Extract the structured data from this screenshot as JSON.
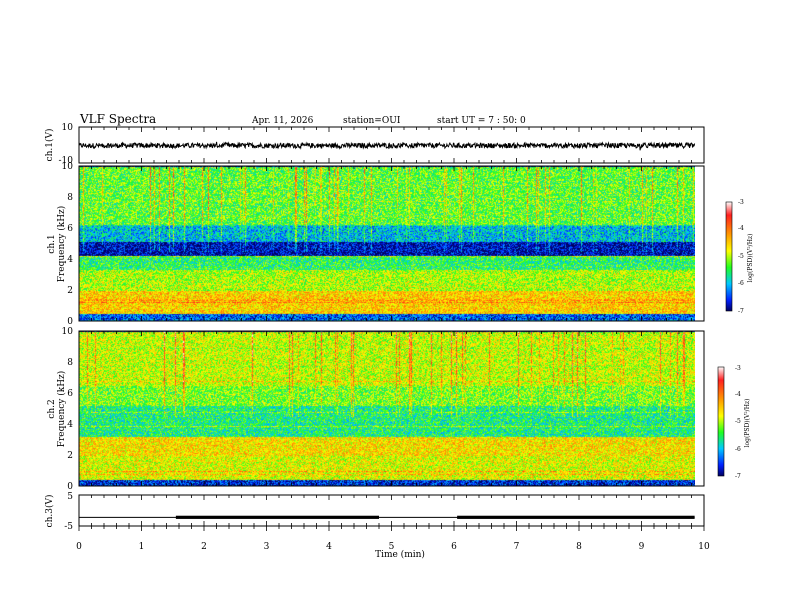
{
  "header": {
    "title": "VLF Spectra",
    "date": "Apr. 11, 2026",
    "station": "station=OUI",
    "start": "start  UT =   7 : 50: 0"
  },
  "chart_data": [
    {
      "type": "line",
      "name": "waveform",
      "ylabel": "ch.1(V)",
      "ylim": [
        -10,
        10
      ],
      "yticks": [
        "10",
        "-10"
      ],
      "xlim": [
        0,
        10
      ],
      "baseline": -0.3,
      "noise_amplitude": 1.4
    },
    {
      "type": "heatmap",
      "name": "ch1-spectrogram",
      "ylabel": "ch.1\nFrequency (kHz)",
      "ylim": [
        0,
        10
      ],
      "yticks": [
        "0",
        "2",
        "4",
        "6",
        "8",
        "10"
      ],
      "xlim": [
        0,
        9.85
      ],
      "colorbar": {
        "label": "log(PSD)(V²/Hz)",
        "ticks": [
          "-3",
          "-4",
          "-5",
          "-6",
          "-7"
        ],
        "range": [
          -7,
          -3
        ]
      },
      "bands": [
        {
          "f0": 0,
          "f1": 0.5,
          "psd": -6.4
        },
        {
          "f0": 0.5,
          "f1": 2.0,
          "psd": -4.5
        },
        {
          "f0": 2.0,
          "f1": 3.3,
          "psd": -5.0
        },
        {
          "f0": 3.3,
          "f1": 4.2,
          "psd": -5.5
        },
        {
          "f0": 4.2,
          "f1": 5.1,
          "psd": -6.8
        },
        {
          "f0": 5.1,
          "f1": 6.2,
          "psd": -6.0
        },
        {
          "f0": 6.2,
          "f1": 10.0,
          "psd": -5.3
        }
      ]
    },
    {
      "type": "heatmap",
      "name": "ch2-spectrogram",
      "ylabel": "ch.2\nFrequency (kHz)",
      "ylim": [
        0,
        10
      ],
      "yticks": [
        "0",
        "2",
        "4",
        "6",
        "8",
        "10"
      ],
      "xlim": [
        0,
        9.85
      ],
      "colorbar": {
        "label": "log(PSD)(V²/Hz)",
        "ticks": [
          "-3",
          "-4",
          "-5",
          "-6",
          "-7"
        ],
        "range": [
          -7,
          -3
        ]
      },
      "bands": [
        {
          "f0": 0,
          "f1": 0.4,
          "psd": -6.6
        },
        {
          "f0": 0.4,
          "f1": 2.0,
          "psd": -4.8
        },
        {
          "f0": 2.0,
          "f1": 3.2,
          "psd": -4.6
        },
        {
          "f0": 3.2,
          "f1": 5.2,
          "psd": -5.6
        },
        {
          "f0": 5.2,
          "f1": 6.5,
          "psd": -5.2
        },
        {
          "f0": 6.5,
          "f1": 10.0,
          "psd": -4.9
        }
      ]
    },
    {
      "type": "line",
      "name": "ch3",
      "ylabel": "ch.3(V)",
      "ylim": [
        -5,
        5
      ],
      "yticks": [
        "5",
        "-5"
      ],
      "xlabel": "Time (min)",
      "xlim": [
        0,
        10
      ],
      "xticks": [
        "0",
        "1",
        "2",
        "3",
        "4",
        "5",
        "6",
        "7",
        "8",
        "9",
        "10"
      ],
      "baseline": -2.2,
      "thick_segments": [
        [
          1.55,
          4.8
        ],
        [
          6.05,
          9.85
        ]
      ]
    }
  ]
}
